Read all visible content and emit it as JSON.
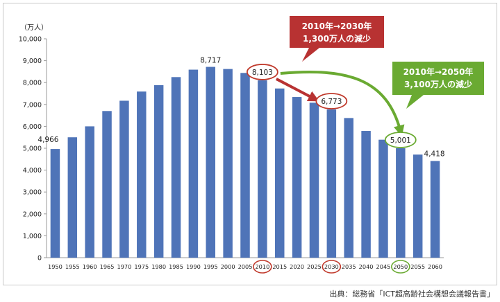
{
  "chart_data": {
    "type": "bar",
    "unit_label": "（万人）",
    "categories": [
      "1950",
      "1955",
      "1960",
      "1965",
      "1970",
      "1975",
      "1980",
      "1985",
      "1990",
      "1995",
      "2000",
      "2005",
      "2010",
      "2015",
      "2020",
      "2025",
      "2030",
      "2035",
      "2040",
      "2045",
      "2050",
      "2055",
      "2060"
    ],
    "values": [
      4966,
      5500,
      6000,
      6700,
      7170,
      7590,
      7880,
      8250,
      8590,
      8717,
      8620,
      8440,
      8103,
      7730,
      7340,
      7080,
      6773,
      6380,
      5790,
      5390,
      5001,
      4710,
      4418
    ],
    "ylim": [
      0,
      10000
    ],
    "yticks": [
      "0",
      "1,000",
      "2,000",
      "3,000",
      "4,000",
      "5,000",
      "6,000",
      "7,000",
      "8,000",
      "9,000",
      "10,000"
    ],
    "bar_color": "#4f74b8",
    "data_labels": [
      {
        "index": 0,
        "text": "4,966"
      },
      {
        "index": 9,
        "text": "8,717"
      },
      {
        "index": 12,
        "text": "8,103",
        "circled": true
      },
      {
        "index": 16,
        "text": "6,773",
        "circled": true
      },
      {
        "index": 20,
        "text": "5,001",
        "circled": true
      },
      {
        "index": 22,
        "text": "4,418"
      }
    ],
    "circled_categories": [
      {
        "index": 12,
        "color": "#c0392b"
      },
      {
        "index": 16,
        "color": "#c0392b"
      },
      {
        "index": 20,
        "color": "#6aaa32"
      }
    ],
    "callouts": [
      {
        "line1": "2010年→2030年",
        "line2": "1,300万人の減少",
        "color": "#b83232"
      },
      {
        "line1": "2010年→2050年",
        "line2": "3,100万人の減少",
        "color": "#6aaa32"
      }
    ]
  },
  "source_text": "出典：総務省「ICT超高齢社会構想会議報告書」"
}
